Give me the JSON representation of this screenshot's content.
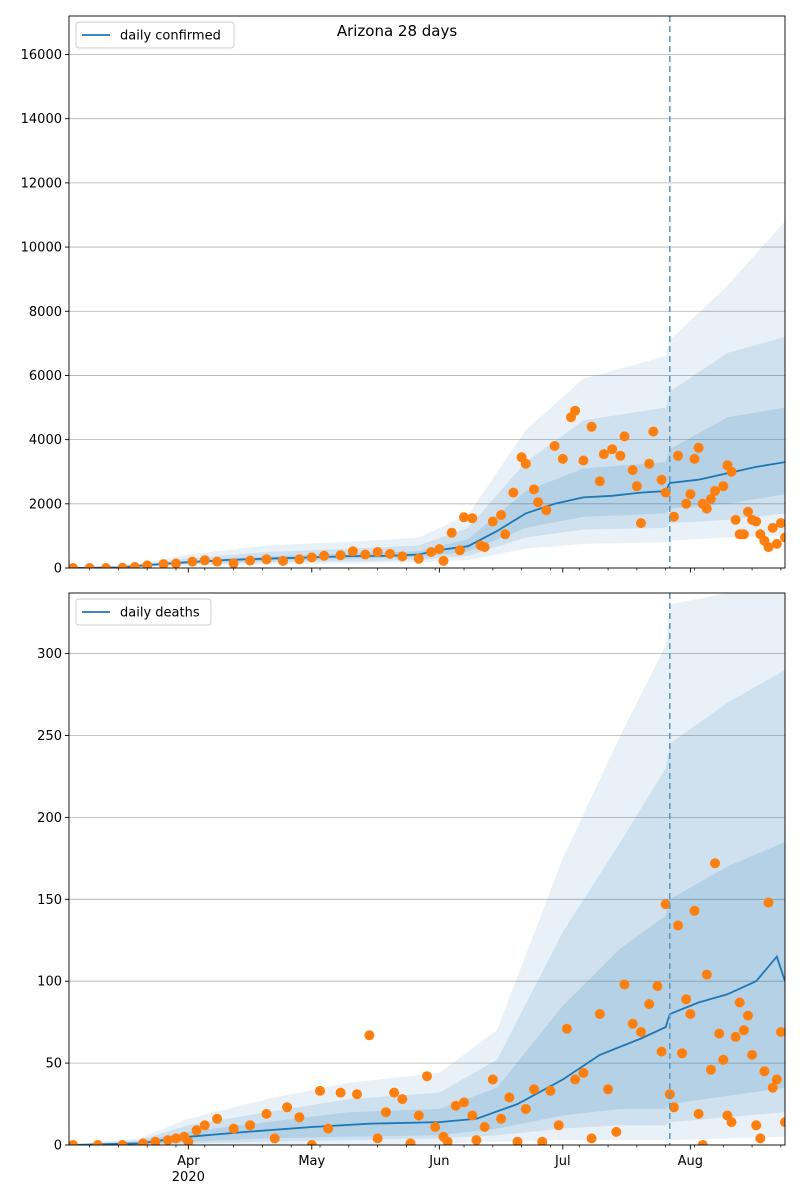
{
  "title": "Arizona 28 days",
  "colors": {
    "line": "#1f77b4",
    "points": "#ff7f0e",
    "band": "#1f77b4",
    "grid": "#b0b0b0",
    "vline": "#5b9bc0"
  },
  "chart_data": [
    {
      "type": "line",
      "legend": "daily confirmed",
      "legend_placement": "top-left",
      "grid": "y",
      "x_ticks": [
        "Apr\n2020",
        "May",
        "Jun",
        "Jul",
        "Aug"
      ],
      "x_range": [
        "2020-03-03",
        "2020-08-24"
      ],
      "vline_date": "2020-07-27",
      "ylim": [
        0,
        17200
      ],
      "y_ticks": [
        0,
        2000,
        4000,
        6000,
        8000,
        10000,
        12000,
        14000,
        16000
      ],
      "line_points": [
        [
          "2020-03-03",
          0
        ],
        [
          "2020-03-15",
          20
        ],
        [
          "2020-03-22",
          90
        ],
        [
          "2020-04-01",
          180
        ],
        [
          "2020-04-10",
          250
        ],
        [
          "2020-04-20",
          290
        ],
        [
          "2020-05-01",
          330
        ],
        [
          "2020-05-10",
          370
        ],
        [
          "2020-05-20",
          380
        ],
        [
          "2020-05-27",
          420
        ],
        [
          "2020-06-01",
          560
        ],
        [
          "2020-06-08",
          680
        ],
        [
          "2020-06-15",
          1150
        ],
        [
          "2020-06-22",
          1700
        ],
        [
          "2020-06-29",
          2000
        ],
        [
          "2020-07-06",
          2200
        ],
        [
          "2020-07-13",
          2250
        ],
        [
          "2020-07-20",
          2350
        ],
        [
          "2020-07-26",
          2400
        ],
        [
          "2020-07-27",
          2650
        ],
        [
          "2020-08-03",
          2750
        ],
        [
          "2020-08-10",
          2950
        ],
        [
          "2020-08-17",
          3150
        ],
        [
          "2020-08-24",
          3300
        ]
      ],
      "band_points": [
        [
          "2020-03-03",
          0,
          0,
          0,
          0,
          0,
          0
        ],
        [
          "2020-03-15",
          5,
          10,
          15,
          30,
          45,
          60
        ],
        [
          "2020-03-22",
          30,
          55,
          75,
          110,
          140,
          180
        ],
        [
          "2020-04-01",
          70,
          120,
          150,
          220,
          300,
          420
        ],
        [
          "2020-04-20",
          110,
          170,
          220,
          360,
          500,
          700
        ],
        [
          "2020-05-10",
          150,
          210,
          290,
          450,
          600,
          820
        ],
        [
          "2020-05-27",
          180,
          250,
          340,
          520,
          700,
          950
        ],
        [
          "2020-06-08",
          250,
          380,
          520,
          900,
          1250,
          1650
        ],
        [
          "2020-06-22",
          600,
          950,
          1250,
          2400,
          3300,
          4300
        ],
        [
          "2020-07-06",
          750,
          1200,
          1600,
          3100,
          4600,
          5900
        ],
        [
          "2020-07-26",
          800,
          1250,
          1700,
          3300,
          5000,
          6600
        ],
        [
          "2020-07-27",
          850,
          1400,
          1850,
          3700,
          5500,
          7100
        ],
        [
          "2020-08-10",
          950,
          1500,
          2000,
          4700,
          6700,
          8800
        ],
        [
          "2020-08-24",
          1000,
          1700,
          2300,
          5000,
          7200,
          10800
        ]
      ],
      "points": [
        [
          "2020-03-04",
          0
        ],
        [
          "2020-03-08",
          0
        ],
        [
          "2020-03-12",
          0
        ],
        [
          "2020-03-16",
          5
        ],
        [
          "2020-03-19",
          30
        ],
        [
          "2020-03-22",
          80
        ],
        [
          "2020-03-26",
          120
        ],
        [
          "2020-03-29",
          140
        ],
        [
          "2020-04-02",
          200
        ],
        [
          "2020-04-05",
          240
        ],
        [
          "2020-04-08",
          200
        ],
        [
          "2020-04-12",
          150
        ],
        [
          "2020-04-16",
          230
        ],
        [
          "2020-04-20",
          270
        ],
        [
          "2020-04-24",
          220
        ],
        [
          "2020-04-28",
          270
        ],
        [
          "2020-05-01",
          330
        ],
        [
          "2020-05-04",
          380
        ],
        [
          "2020-05-08",
          400
        ],
        [
          "2020-05-11",
          520
        ],
        [
          "2020-05-14",
          420
        ],
        [
          "2020-05-17",
          500
        ],
        [
          "2020-05-20",
          440
        ],
        [
          "2020-05-23",
          360
        ],
        [
          "2020-05-27",
          290
        ],
        [
          "2020-05-30",
          500
        ],
        [
          "2020-06-01",
          590
        ],
        [
          "2020-06-02",
          220
        ],
        [
          "2020-06-04",
          1100
        ],
        [
          "2020-06-06",
          550
        ],
        [
          "2020-06-07",
          1580
        ],
        [
          "2020-06-09",
          1550
        ],
        [
          "2020-06-11",
          700
        ],
        [
          "2020-06-12",
          650
        ],
        [
          "2020-06-14",
          1450
        ],
        [
          "2020-06-16",
          1650
        ],
        [
          "2020-06-17",
          1050
        ],
        [
          "2020-06-19",
          2350
        ],
        [
          "2020-06-21",
          3450
        ],
        [
          "2020-06-22",
          3250
        ],
        [
          "2020-06-24",
          2450
        ],
        [
          "2020-06-25",
          2050
        ],
        [
          "2020-06-27",
          1800
        ],
        [
          "2020-06-29",
          3800
        ],
        [
          "2020-07-01",
          3400
        ],
        [
          "2020-07-03",
          4700
        ],
        [
          "2020-07-04",
          4900
        ],
        [
          "2020-07-06",
          3350
        ],
        [
          "2020-07-08",
          4400
        ],
        [
          "2020-07-10",
          2700
        ],
        [
          "2020-07-11",
          3550
        ],
        [
          "2020-07-13",
          3700
        ],
        [
          "2020-07-15",
          3500
        ],
        [
          "2020-07-16",
          4100
        ],
        [
          "2020-07-18",
          3050
        ],
        [
          "2020-07-19",
          2550
        ],
        [
          "2020-07-20",
          1400
        ],
        [
          "2020-07-22",
          3250
        ],
        [
          "2020-07-23",
          4250
        ],
        [
          "2020-07-25",
          2750
        ],
        [
          "2020-07-26",
          2350
        ],
        [
          "2020-07-28",
          1600
        ],
        [
          "2020-07-29",
          3500
        ],
        [
          "2020-07-31",
          2000
        ],
        [
          "2020-08-01",
          2300
        ],
        [
          "2020-08-02",
          3400
        ],
        [
          "2020-08-03",
          3750
        ],
        [
          "2020-08-04",
          2000
        ],
        [
          "2020-08-05",
          1850
        ],
        [
          "2020-08-06",
          2150
        ],
        [
          "2020-08-07",
          2400
        ],
        [
          "2020-08-09",
          2550
        ],
        [
          "2020-08-10",
          3200
        ],
        [
          "2020-08-11",
          3000
        ],
        [
          "2020-08-12",
          1500
        ],
        [
          "2020-08-13",
          1050
        ],
        [
          "2020-08-14",
          1050
        ],
        [
          "2020-08-15",
          1750
        ],
        [
          "2020-08-16",
          1500
        ],
        [
          "2020-08-17",
          1450
        ],
        [
          "2020-08-18",
          1050
        ],
        [
          "2020-08-19",
          850
        ],
        [
          "2020-08-20",
          650
        ],
        [
          "2020-08-21",
          1250
        ],
        [
          "2020-08-22",
          750
        ],
        [
          "2020-08-23",
          1400
        ],
        [
          "2020-08-24",
          950
        ]
      ]
    },
    {
      "type": "line",
      "legend": "daily deaths",
      "legend_placement": "top-left",
      "grid": "y",
      "x_ticks": [
        "Apr\n2020",
        "May",
        "Jun",
        "Jul",
        "Aug"
      ],
      "x_range": [
        "2020-03-03",
        "2020-08-24"
      ],
      "vline_date": "2020-07-27",
      "ylim": [
        0,
        337
      ],
      "y_ticks": [
        0,
        50,
        100,
        150,
        200,
        250,
        300
      ],
      "line_points": [
        [
          "2020-03-03",
          0
        ],
        [
          "2020-03-20",
          1
        ],
        [
          "2020-04-01",
          5
        ],
        [
          "2020-04-15",
          8
        ],
        [
          "2020-05-01",
          11
        ],
        [
          "2020-05-15",
          13
        ],
        [
          "2020-06-01",
          14
        ],
        [
          "2020-06-10",
          16
        ],
        [
          "2020-06-20",
          25
        ],
        [
          "2020-07-01",
          40
        ],
        [
          "2020-07-10",
          55
        ],
        [
          "2020-07-20",
          65
        ],
        [
          "2020-07-26",
          72
        ],
        [
          "2020-07-27",
          80
        ],
        [
          "2020-08-03",
          87
        ],
        [
          "2020-08-10",
          92
        ],
        [
          "2020-08-17",
          100
        ],
        [
          "2020-08-22",
          115
        ],
        [
          "2020-08-24",
          100
        ]
      ],
      "band_points": [
        [
          "2020-03-03",
          0,
          0,
          0,
          0,
          0,
          0
        ],
        [
          "2020-03-20",
          0,
          0,
          0,
          2,
          3,
          4
        ],
        [
          "2020-04-01",
          0,
          1,
          2,
          8,
          12,
          16
        ],
        [
          "2020-04-20",
          0,
          2,
          4,
          14,
          20,
          28
        ],
        [
          "2020-05-10",
          0,
          3,
          5,
          20,
          28,
          38
        ],
        [
          "2020-06-01",
          1,
          4,
          6,
          22,
          32,
          44
        ],
        [
          "2020-06-15",
          2,
          6,
          10,
          35,
          52,
          70
        ],
        [
          "2020-07-01",
          3,
          10,
          18,
          85,
          130,
          175
        ],
        [
          "2020-07-15",
          3,
          12,
          22,
          120,
          185,
          250
        ],
        [
          "2020-07-26",
          3,
          12,
          22,
          140,
          230,
          305
        ],
        [
          "2020-07-27",
          3,
          14,
          25,
          150,
          245,
          330
        ],
        [
          "2020-08-10",
          4,
          17,
          30,
          170,
          270,
          337
        ],
        [
          "2020-08-24",
          5,
          20,
          35,
          185,
          290,
          337
        ]
      ],
      "points": [
        [
          "2020-03-04",
          0
        ],
        [
          "2020-03-10",
          0
        ],
        [
          "2020-03-16",
          0
        ],
        [
          "2020-03-21",
          1
        ],
        [
          "2020-03-24",
          2
        ],
        [
          "2020-03-27",
          3
        ],
        [
          "2020-03-29",
          4
        ],
        [
          "2020-03-31",
          5
        ],
        [
          "2020-04-01",
          2
        ],
        [
          "2020-04-03",
          9
        ],
        [
          "2020-04-05",
          12
        ],
        [
          "2020-04-08",
          16
        ],
        [
          "2020-04-12",
          10
        ],
        [
          "2020-04-16",
          12
        ],
        [
          "2020-04-20",
          19
        ],
        [
          "2020-04-22",
          4
        ],
        [
          "2020-04-25",
          23
        ],
        [
          "2020-04-28",
          17
        ],
        [
          "2020-05-01",
          0
        ],
        [
          "2020-05-03",
          33
        ],
        [
          "2020-05-05",
          10
        ],
        [
          "2020-05-08",
          32
        ],
        [
          "2020-05-12",
          31
        ],
        [
          "2020-05-15",
          67
        ],
        [
          "2020-05-17",
          4
        ],
        [
          "2020-05-19",
          20
        ],
        [
          "2020-05-21",
          32
        ],
        [
          "2020-05-23",
          28
        ],
        [
          "2020-05-25",
          1
        ],
        [
          "2020-05-27",
          18
        ],
        [
          "2020-05-29",
          42
        ],
        [
          "2020-05-31",
          11
        ],
        [
          "2020-06-02",
          5
        ],
        [
          "2020-06-03",
          2
        ],
        [
          "2020-06-05",
          24
        ],
        [
          "2020-06-07",
          26
        ],
        [
          "2020-06-09",
          18
        ],
        [
          "2020-06-10",
          3
        ],
        [
          "2020-06-12",
          11
        ],
        [
          "2020-06-14",
          40
        ],
        [
          "2020-06-16",
          16
        ],
        [
          "2020-06-18",
          29
        ],
        [
          "2020-06-20",
          2
        ],
        [
          "2020-06-22",
          22
        ],
        [
          "2020-06-24",
          34
        ],
        [
          "2020-06-26",
          2
        ],
        [
          "2020-06-28",
          33
        ],
        [
          "2020-06-30",
          12
        ],
        [
          "2020-07-02",
          71
        ],
        [
          "2020-07-04",
          40
        ],
        [
          "2020-07-06",
          44
        ],
        [
          "2020-07-08",
          4
        ],
        [
          "2020-07-10",
          80
        ],
        [
          "2020-07-12",
          34
        ],
        [
          "2020-07-14",
          8
        ],
        [
          "2020-07-16",
          98
        ],
        [
          "2020-07-18",
          74
        ],
        [
          "2020-07-20",
          69
        ],
        [
          "2020-07-22",
          86
        ],
        [
          "2020-07-24",
          97
        ],
        [
          "2020-07-25",
          57
        ],
        [
          "2020-07-26",
          147
        ],
        [
          "2020-07-27",
          31
        ],
        [
          "2020-07-28",
          23
        ],
        [
          "2020-07-29",
          134
        ],
        [
          "2020-07-30",
          56
        ],
        [
          "2020-07-31",
          89
        ],
        [
          "2020-08-01",
          80
        ],
        [
          "2020-08-02",
          143
        ],
        [
          "2020-08-03",
          19
        ],
        [
          "2020-08-04",
          0
        ],
        [
          "2020-08-05",
          104
        ],
        [
          "2020-08-06",
          46
        ],
        [
          "2020-08-07",
          172
        ],
        [
          "2020-08-08",
          68
        ],
        [
          "2020-08-09",
          52
        ],
        [
          "2020-08-10",
          18
        ],
        [
          "2020-08-11",
          14
        ],
        [
          "2020-08-12",
          66
        ],
        [
          "2020-08-13",
          87
        ],
        [
          "2020-08-14",
          70
        ],
        [
          "2020-08-15",
          79
        ],
        [
          "2020-08-16",
          55
        ],
        [
          "2020-08-17",
          12
        ],
        [
          "2020-08-18",
          4
        ],
        [
          "2020-08-19",
          45
        ],
        [
          "2020-08-20",
          148
        ],
        [
          "2020-08-21",
          35
        ],
        [
          "2020-08-22",
          40
        ],
        [
          "2020-08-23",
          69
        ],
        [
          "2020-08-24",
          14
        ]
      ]
    }
  ]
}
